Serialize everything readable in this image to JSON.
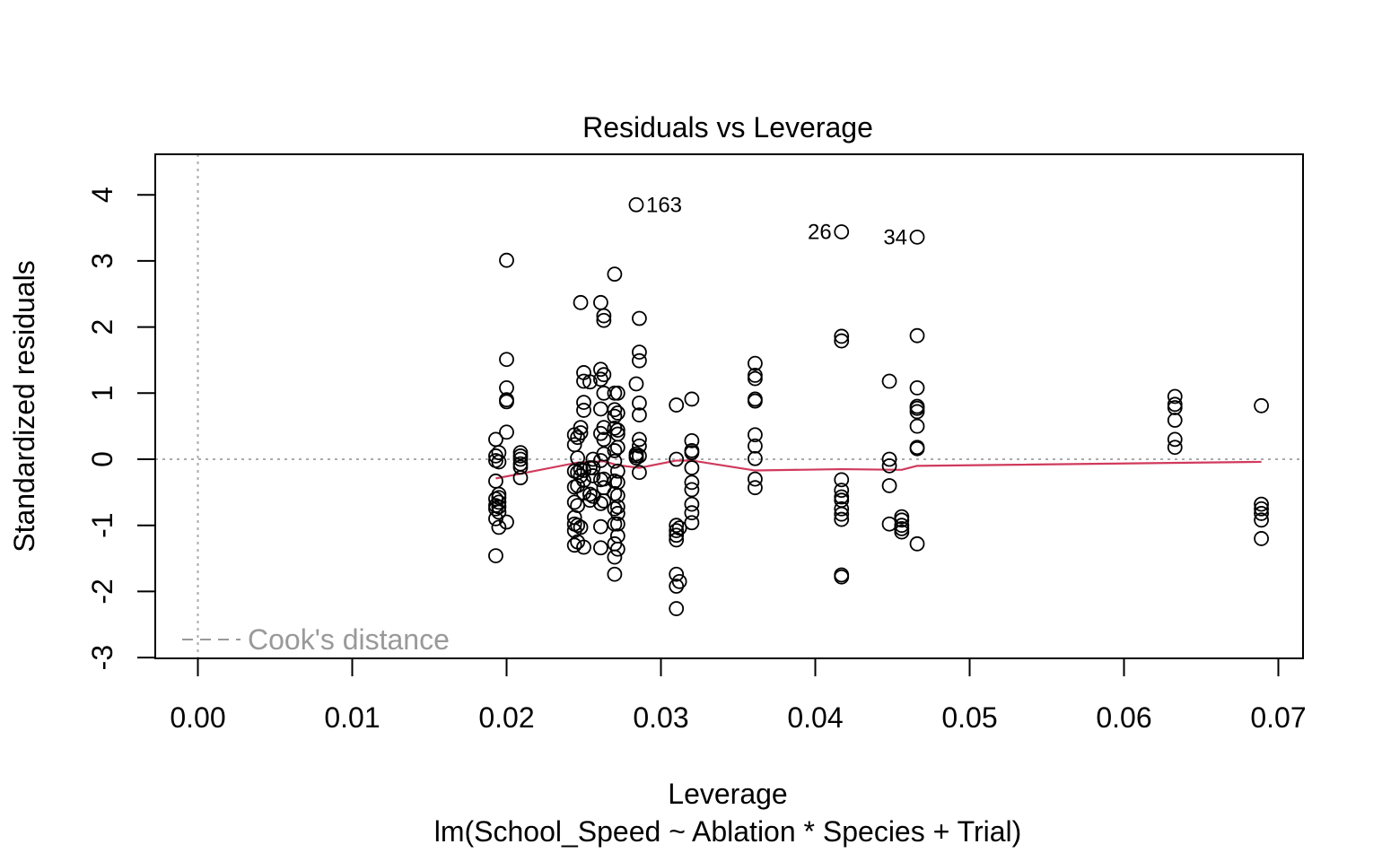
{
  "chart_data": {
    "type": "scatter",
    "title": "Residuals vs Leverage",
    "xlabel": "Leverage",
    "subtitle": "lm(School_Speed ~ Ablation * Species + Trial)",
    "ylabel": "Standardized residuals",
    "xlim": [
      -0.00275,
      0.0715
    ],
    "ylim": [
      -3.0,
      4.6
    ],
    "x_ticks": [
      0.0,
      0.01,
      0.02,
      0.03,
      0.04,
      0.05,
      0.06,
      0.07
    ],
    "x_tick_labels": [
      "0.00",
      "0.01",
      "0.02",
      "0.03",
      "0.04",
      "0.05",
      "0.06",
      "0.07"
    ],
    "y_ticks": [
      -3,
      -2,
      -1,
      0,
      1,
      2,
      3,
      4
    ],
    "y_tick_labels": [
      "-3",
      "-2",
      "-1",
      "0",
      "1",
      "2",
      "3",
      "4"
    ],
    "grid": false,
    "reference_lines": {
      "horizontal_y": 0,
      "vertical_x": 0,
      "style": "dotted",
      "color": "#aaaaaa"
    },
    "legend": {
      "label": "Cook's distance",
      "style": "dashed",
      "color": "#999999",
      "position": "bottom-left"
    },
    "point_color": "#000000",
    "smooth_color": "#d03a5c",
    "points": [
      [
        0.0193,
        0.3
      ],
      [
        0.0193,
        0.05
      ],
      [
        0.0193,
        -0.02
      ],
      [
        0.0193,
        -0.33
      ],
      [
        0.0193,
        -0.6
      ],
      [
        0.0193,
        -0.7
      ],
      [
        0.0193,
        -0.75
      ],
      [
        0.0193,
        -0.9
      ],
      [
        0.0193,
        -1.46
      ],
      [
        0.0195,
        0.1
      ],
      [
        0.0195,
        -0.04
      ],
      [
        0.0195,
        -0.53
      ],
      [
        0.0195,
        -0.58
      ],
      [
        0.0195,
        -0.65
      ],
      [
        0.0195,
        -0.72
      ],
      [
        0.0195,
        -0.8
      ],
      [
        0.0195,
        -1.03
      ],
      [
        0.02,
        3.01
      ],
      [
        0.02,
        1.51
      ],
      [
        0.02,
        1.08
      ],
      [
        0.02,
        0.9
      ],
      [
        0.02,
        0.87
      ],
      [
        0.02,
        0.41
      ],
      [
        0.02,
        -0.95
      ],
      [
        0.0209,
        0.1
      ],
      [
        0.0209,
        0.05
      ],
      [
        0.0209,
        0.0
      ],
      [
        0.0209,
        -0.07
      ],
      [
        0.0209,
        -0.12
      ],
      [
        0.0209,
        -0.28
      ],
      [
        0.0244,
        0.37
      ],
      [
        0.0244,
        0.22
      ],
      [
        0.0244,
        -0.18
      ],
      [
        0.0244,
        -0.42
      ],
      [
        0.0244,
        -0.65
      ],
      [
        0.0244,
        -0.88
      ],
      [
        0.0244,
        -0.98
      ],
      [
        0.0244,
        -1.08
      ],
      [
        0.0244,
        -1.3
      ],
      [
        0.0246,
        0.33
      ],
      [
        0.0246,
        0.02
      ],
      [
        0.0246,
        -0.2
      ],
      [
        0.0246,
        -0.4
      ],
      [
        0.0246,
        -0.7
      ],
      [
        0.0246,
        -1.0
      ],
      [
        0.0246,
        -1.25
      ],
      [
        0.0248,
        2.37
      ],
      [
        0.0248,
        0.48
      ],
      [
        0.0248,
        0.4
      ],
      [
        0.0248,
        -0.15
      ],
      [
        0.0248,
        -0.25
      ],
      [
        0.0248,
        -1.03
      ],
      [
        0.025,
        1.31
      ],
      [
        0.025,
        1.18
      ],
      [
        0.025,
        0.86
      ],
      [
        0.025,
        0.74
      ],
      [
        0.025,
        -0.17
      ],
      [
        0.025,
        -0.32
      ],
      [
        0.025,
        -0.51
      ],
      [
        0.025,
        -1.33
      ],
      [
        0.0254,
        1.17
      ],
      [
        0.0254,
        -0.13
      ],
      [
        0.0254,
        -0.53
      ],
      [
        0.0254,
        -0.62
      ],
      [
        0.0256,
        0.0
      ],
      [
        0.0256,
        -0.13
      ],
      [
        0.0256,
        -0.25
      ],
      [
        0.0256,
        -0.56
      ],
      [
        0.0261,
        2.37
      ],
      [
        0.0261,
        1.36
      ],
      [
        0.0261,
        1.21
      ],
      [
        0.0261,
        0.76
      ],
      [
        0.0261,
        0.39
      ],
      [
        0.0261,
        -0.02
      ],
      [
        0.0261,
        -0.31
      ],
      [
        0.0261,
        -0.67
      ],
      [
        0.0261,
        -1.02
      ],
      [
        0.0261,
        -1.34
      ],
      [
        0.0263,
        2.17
      ],
      [
        0.0263,
        2.1
      ],
      [
        0.0263,
        1.28
      ],
      [
        0.0263,
        1.0
      ],
      [
        0.0263,
        0.48
      ],
      [
        0.0263,
        0.3
      ],
      [
        0.0263,
        0.08
      ],
      [
        0.0263,
        -0.3
      ],
      [
        0.0263,
        -0.43
      ],
      [
        0.0263,
        -0.63
      ],
      [
        0.027,
        2.8
      ],
      [
        0.027,
        1.0
      ],
      [
        0.027,
        0.75
      ],
      [
        0.027,
        0.65
      ],
      [
        0.027,
        0.47
      ],
      [
        0.027,
        0.13
      ],
      [
        0.027,
        -0.03
      ],
      [
        0.027,
        -0.33
      ],
      [
        0.027,
        -0.52
      ],
      [
        0.027,
        -0.75
      ],
      [
        0.027,
        -0.98
      ],
      [
        0.027,
        -1.28
      ],
      [
        0.027,
        -1.48
      ],
      [
        0.027,
        -1.74
      ],
      [
        0.0272,
        1.0
      ],
      [
        0.0272,
        0.7
      ],
      [
        0.0272,
        0.44
      ],
      [
        0.0272,
        0.38
      ],
      [
        0.0272,
        0.18
      ],
      [
        0.0272,
        -0.18
      ],
      [
        0.0272,
        -0.35
      ],
      [
        0.0272,
        -0.55
      ],
      [
        0.0272,
        -0.72
      ],
      [
        0.0272,
        -0.82
      ],
      [
        0.0272,
        -0.98
      ],
      [
        0.0272,
        -1.16
      ],
      [
        0.0272,
        -1.36
      ],
      [
        0.0284,
        3.85
      ],
      [
        0.0284,
        1.14
      ],
      [
        0.0284,
        0.08
      ],
      [
        0.0284,
        0.05
      ],
      [
        0.0284,
        0.02
      ],
      [
        0.0286,
        2.13
      ],
      [
        0.0286,
        1.62
      ],
      [
        0.0286,
        1.49
      ],
      [
        0.0286,
        0.85
      ],
      [
        0.0286,
        0.67
      ],
      [
        0.0286,
        0.3
      ],
      [
        0.0286,
        0.2
      ],
      [
        0.0286,
        0.05
      ],
      [
        0.0286,
        -0.2
      ],
      [
        0.031,
        0.82
      ],
      [
        0.031,
        0.0
      ],
      [
        0.031,
        -1.0
      ],
      [
        0.031,
        -1.08
      ],
      [
        0.031,
        -1.15
      ],
      [
        0.031,
        -1.22
      ],
      [
        0.031,
        -1.74
      ],
      [
        0.031,
        -1.92
      ],
      [
        0.031,
        -2.26
      ],
      [
        0.0312,
        -1.04
      ],
      [
        0.0312,
        -1.85
      ],
      [
        0.032,
        0.91
      ],
      [
        0.032,
        0.28
      ],
      [
        0.032,
        0.13
      ],
      [
        0.032,
        0.1
      ],
      [
        0.032,
        -0.13
      ],
      [
        0.032,
        -0.35
      ],
      [
        0.032,
        -0.46
      ],
      [
        0.032,
        -0.68
      ],
      [
        0.032,
        -0.81
      ],
      [
        0.032,
        -0.96
      ],
      [
        0.0361,
        1.45
      ],
      [
        0.0361,
        1.27
      ],
      [
        0.0361,
        1.22
      ],
      [
        0.0361,
        0.91
      ],
      [
        0.0361,
        0.88
      ],
      [
        0.0361,
        0.37
      ],
      [
        0.0361,
        0.2
      ],
      [
        0.0361,
        0.01
      ],
      [
        0.0361,
        -0.3
      ],
      [
        0.0361,
        -0.43
      ],
      [
        0.0417,
        3.44
      ],
      [
        0.0417,
        1.86
      ],
      [
        0.0417,
        1.79
      ],
      [
        0.0417,
        -0.31
      ],
      [
        0.0417,
        -0.47
      ],
      [
        0.0417,
        -0.57
      ],
      [
        0.0417,
        -0.62
      ],
      [
        0.0417,
        -0.75
      ],
      [
        0.0417,
        -0.83
      ],
      [
        0.0417,
        -0.91
      ],
      [
        0.0417,
        -1.75
      ],
      [
        0.0417,
        -1.78
      ],
      [
        0.0448,
        1.18
      ],
      [
        0.0448,
        0.0
      ],
      [
        0.0448,
        -0.1
      ],
      [
        0.0448,
        -0.4
      ],
      [
        0.0448,
        -0.98
      ],
      [
        0.0456,
        -0.87
      ],
      [
        0.0456,
        -0.92
      ],
      [
        0.0456,
        -1.0
      ],
      [
        0.0456,
        -1.05
      ],
      [
        0.0456,
        -1.1
      ],
      [
        0.0466,
        3.36
      ],
      [
        0.0466,
        1.87
      ],
      [
        0.0466,
        1.08
      ],
      [
        0.0466,
        0.8
      ],
      [
        0.0466,
        0.77
      ],
      [
        0.0466,
        0.72
      ],
      [
        0.0466,
        0.5
      ],
      [
        0.0466,
        0.18
      ],
      [
        0.0466,
        0.16
      ],
      [
        0.0466,
        -1.28
      ],
      [
        0.0633,
        0.95
      ],
      [
        0.0633,
        0.83
      ],
      [
        0.0633,
        0.78
      ],
      [
        0.0633,
        0.59
      ],
      [
        0.0633,
        0.3
      ],
      [
        0.0633,
        0.18
      ],
      [
        0.0689,
        0.81
      ],
      [
        0.0689,
        -0.68
      ],
      [
        0.0689,
        -0.75
      ],
      [
        0.0689,
        -0.82
      ],
      [
        0.0689,
        -0.92
      ],
      [
        0.0689,
        -1.2
      ]
    ],
    "point_labels": [
      {
        "text": "163",
        "x": 0.0284,
        "y": 3.85,
        "side": "right"
      },
      {
        "text": "26",
        "x": 0.0417,
        "y": 3.44,
        "side": "left"
      },
      {
        "text": "34",
        "x": 0.0466,
        "y": 3.36,
        "side": "left"
      }
    ],
    "smooth_line": [
      [
        0.0193,
        -0.29
      ],
      [
        0.0209,
        -0.22
      ],
      [
        0.0246,
        -0.05
      ],
      [
        0.0263,
        -0.03
      ],
      [
        0.0272,
        -0.09
      ],
      [
        0.0286,
        -0.13
      ],
      [
        0.031,
        -0.02
      ],
      [
        0.032,
        -0.02
      ],
      [
        0.0361,
        -0.17
      ],
      [
        0.0417,
        -0.15
      ],
      [
        0.0456,
        -0.16
      ],
      [
        0.0466,
        -0.1
      ],
      [
        0.0689,
        -0.04
      ]
    ]
  }
}
